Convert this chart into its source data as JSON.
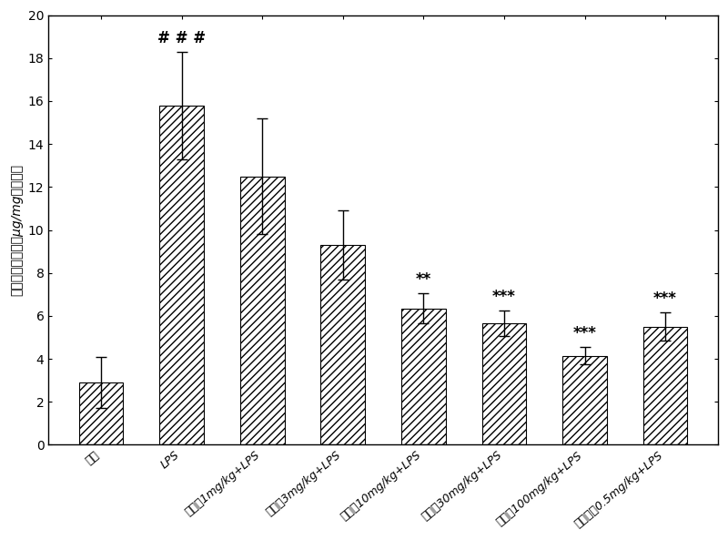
{
  "categories": [
    "对照",
    "LPS",
    "甘露糖1mg/kg+LPS",
    "甘露糖3mg/kg+LPS",
    "甘露糖10mg/kg+LPS",
    "甘露糖30mg/kg+LPS",
    "甘露糖100mg/kg+LPS",
    "地塞米松0.5mg/kg+LPS"
  ],
  "values": [
    2.9,
    15.8,
    12.5,
    9.3,
    6.35,
    5.65,
    4.15,
    5.5
  ],
  "errors": [
    1.2,
    2.5,
    2.7,
    1.6,
    0.7,
    0.6,
    0.4,
    0.65
  ],
  "annotations": [
    "",
    "# # #",
    "",
    "",
    "**",
    "***",
    "***",
    "***"
  ],
  "ylabel": "伊文思蓝渗出量（μg/mg肺湿重）",
  "ylim": [
    0,
    20
  ],
  "yticks": [
    0,
    2,
    4,
    6,
    8,
    10,
    12,
    14,
    16,
    18,
    20
  ],
  "bar_color": "#ffffff",
  "hatch": "////",
  "bar_edge_color": "#000000",
  "background_color": "#ffffff",
  "figwidth": 8.0,
  "figheight": 5.93
}
